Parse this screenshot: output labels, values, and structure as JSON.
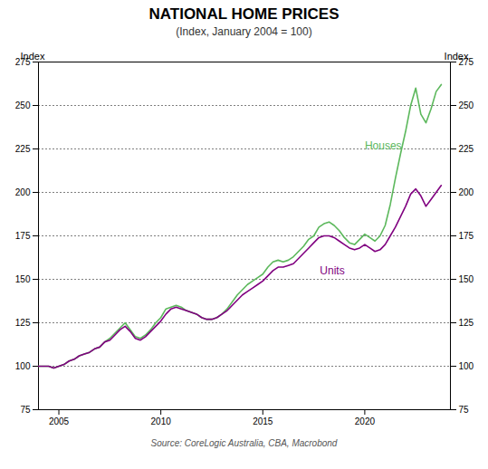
{
  "chart_data": {
    "type": "line",
    "title": "NATIONAL HOME PRICES",
    "subtitle": "(Index, January 2004 = 100)",
    "ylabel": "Index",
    "y2label": "Index",
    "source": "Source: CoreLogic Australia, CBA, Macrobond",
    "xlim": [
      2004.0,
      2024.2
    ],
    "xticks": [
      2005,
      2010,
      2015,
      2020
    ],
    "ylim": [
      75,
      275
    ],
    "yticks": [
      75,
      100,
      125,
      150,
      175,
      200,
      225,
      250,
      275
    ],
    "y2lim": [
      75,
      275
    ],
    "y2ticks": [
      75,
      100,
      125,
      150,
      175,
      200,
      225,
      250,
      275
    ],
    "grid": "y",
    "x": [
      2004.0,
      2004.25,
      2004.5,
      2004.75,
      2005.0,
      2005.25,
      2005.5,
      2005.75,
      2006.0,
      2006.25,
      2006.5,
      2006.75,
      2007.0,
      2007.25,
      2007.5,
      2007.75,
      2008.0,
      2008.25,
      2008.5,
      2008.75,
      2009.0,
      2009.25,
      2009.5,
      2009.75,
      2010.0,
      2010.25,
      2010.5,
      2010.75,
      2011.0,
      2011.25,
      2011.5,
      2011.75,
      2012.0,
      2012.25,
      2012.5,
      2012.75,
      2013.0,
      2013.25,
      2013.5,
      2013.75,
      2014.0,
      2014.25,
      2014.5,
      2014.75,
      2015.0,
      2015.25,
      2015.5,
      2015.75,
      2016.0,
      2016.25,
      2016.5,
      2016.75,
      2017.0,
      2017.25,
      2017.5,
      2017.75,
      2018.0,
      2018.25,
      2018.5,
      2018.75,
      2019.0,
      2019.25,
      2019.5,
      2019.75,
      2020.0,
      2020.25,
      2020.5,
      2020.75,
      2021.0,
      2021.25,
      2021.5,
      2021.75,
      2022.0,
      2022.25,
      2022.5,
      2022.75,
      2023.0,
      2023.25,
      2023.5,
      2023.75
    ],
    "series": [
      {
        "name": "Houses",
        "color": "#5cb85c",
        "values": [
          100,
          100,
          100,
          99,
          100,
          101,
          103,
          104,
          106,
          107,
          108,
          110,
          111,
          114,
          116,
          119,
          122,
          125,
          121,
          117,
          116,
          118,
          121,
          125,
          128,
          133,
          134,
          135,
          134,
          132,
          131,
          130,
          128,
          127,
          127,
          128,
          130,
          133,
          137,
          141,
          144,
          147,
          149,
          151,
          153,
          157,
          160,
          161,
          160,
          161,
          163,
          166,
          169,
          173,
          175,
          180,
          182,
          183,
          181,
          178,
          174,
          171,
          170,
          173,
          176,
          174,
          172,
          175,
          181,
          193,
          208,
          222,
          235,
          250,
          260,
          245,
          240,
          248,
          258,
          262
        ]
      },
      {
        "name": "Units",
        "color": "#800080",
        "values": [
          100,
          100,
          100,
          99,
          100,
          101,
          103,
          104,
          106,
          107,
          108,
          110,
          111,
          114,
          115,
          118,
          121,
          123,
          120,
          116,
          115,
          117,
          120,
          123,
          126,
          130,
          133,
          134,
          133,
          132,
          131,
          130,
          128,
          127,
          127,
          128,
          130,
          132,
          135,
          138,
          141,
          143,
          145,
          147,
          149,
          152,
          155,
          157,
          157,
          158,
          159,
          162,
          165,
          168,
          171,
          174,
          175,
          175,
          174,
          172,
          170,
          168,
          167,
          168,
          170,
          168,
          166,
          167,
          170,
          175,
          180,
          186,
          192,
          199,
          202,
          198,
          192,
          196,
          200,
          204
        ]
      }
    ],
    "annotations": [
      {
        "text": "Houses",
        "x": 2020.0,
        "y": 225,
        "color": "#5cb85c"
      },
      {
        "text": "Units",
        "x": 2017.8,
        "y": 153,
        "color": "#800080"
      }
    ]
  }
}
